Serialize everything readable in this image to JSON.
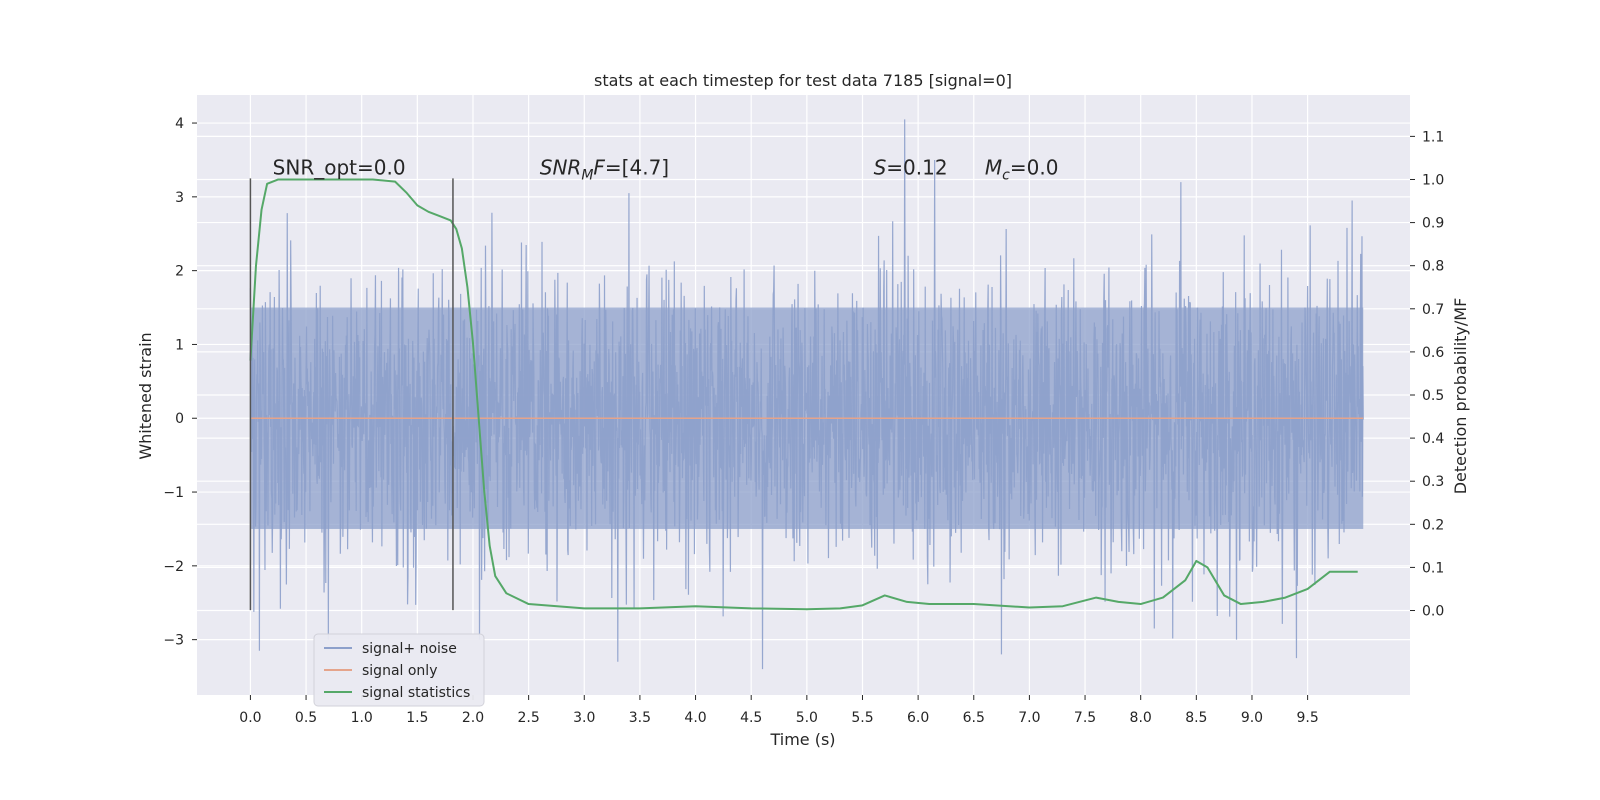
{
  "chart_data": {
    "type": "line",
    "title": "stats at each timestep for test data 7185 [signal=0]",
    "xlabel": "Time (s)",
    "ylabel_left": "Whitened strain",
    "ylabel_right": "Detection probability/MF",
    "xlim": [
      -0.48,
      10.42
    ],
    "ylim_left": [
      -3.75,
      4.38
    ],
    "ylim_right": [
      -0.196,
      1.196
    ],
    "x_ticks": [
      0.0,
      0.5,
      1.0,
      1.5,
      2.0,
      2.5,
      3.0,
      3.5,
      4.0,
      4.5,
      5.0,
      5.5,
      6.0,
      6.5,
      7.0,
      7.5,
      8.0,
      8.5,
      9.0,
      9.5
    ],
    "x_tick_labels": [
      "0.0",
      "0.5",
      "1.0",
      "1.5",
      "2.0",
      "2.5",
      "3.0",
      "3.5",
      "4.0",
      "4.5",
      "5.0",
      "5.5",
      "6.0",
      "6.5",
      "7.0",
      "7.5",
      "8.0",
      "8.5",
      "9.0",
      "9.5"
    ],
    "y_left_ticks": [
      -3,
      -2,
      -1,
      0,
      1,
      2,
      3,
      4
    ],
    "y_left_tick_labels": [
      "−3",
      "−2",
      "−1",
      "0",
      "1",
      "2",
      "3",
      "4"
    ],
    "y_right_ticks": [
      0.0,
      0.1,
      0.2,
      0.3,
      0.4,
      0.5,
      0.6,
      0.7,
      0.8,
      0.9,
      1.0,
      1.1
    ],
    "y_right_tick_labels": [
      "0.0",
      "0.1",
      "0.2",
      "0.3",
      "0.4",
      "0.5",
      "0.6",
      "0.7",
      "0.8",
      "0.9",
      "1.0",
      "1.1"
    ],
    "grid": true,
    "legend": {
      "placement": "lower-left",
      "entries": [
        "signal+ noise",
        "signal only",
        "signal statistics"
      ]
    },
    "series": [
      {
        "name": "signal+ noise",
        "axis": "left",
        "color": "#8da0cb",
        "x_range": [
          0.0,
          10.0
        ],
        "peak_values": [
          {
            "x": 5.88,
            "y": 4.05
          },
          {
            "x": 6.15,
            "y": 3.5
          },
          {
            "x": 3.4,
            "y": 3.05
          },
          {
            "x": 0.33,
            "y": 2.78
          },
          {
            "x": 8.36,
            "y": 3.2
          },
          {
            "x": 9.9,
            "y": 2.95
          },
          {
            "x": 4.6,
            "y": -3.4
          },
          {
            "x": 3.3,
            "y": -3.3
          },
          {
            "x": 0.08,
            "y": -3.15
          },
          {
            "x": 9.4,
            "y": -3.25
          },
          {
            "x": 6.75,
            "y": -3.2
          }
        ],
        "band_upper": 1.5,
        "band_lower": -1.5
      },
      {
        "name": "signal only",
        "axis": "left",
        "color": "#e5a48b",
        "x": [
          0.0,
          10.0
        ],
        "y": [
          0.0,
          0.0
        ]
      },
      {
        "name": "signal statistics",
        "axis": "right",
        "color": "#55a868",
        "x": [
          0.0,
          0.05,
          0.1,
          0.15,
          0.25,
          0.5,
          0.8,
          1.1,
          1.3,
          1.4,
          1.5,
          1.6,
          1.7,
          1.8,
          1.85,
          1.9,
          1.95,
          2.0,
          2.05,
          2.1,
          2.15,
          2.2,
          2.3,
          2.5,
          3.0,
          3.5,
          4.0,
          4.5,
          5.0,
          5.3,
          5.5,
          5.7,
          5.9,
          6.1,
          6.5,
          7.0,
          7.3,
          7.6,
          7.8,
          8.0,
          8.2,
          8.4,
          8.5,
          8.6,
          8.75,
          8.9,
          9.1,
          9.3,
          9.5,
          9.7,
          9.95
        ],
        "y": [
          0.58,
          0.8,
          0.93,
          0.99,
          1.0,
          1.0,
          1.0,
          1.0,
          0.995,
          0.97,
          0.94,
          0.925,
          0.915,
          0.905,
          0.885,
          0.84,
          0.75,
          0.62,
          0.45,
          0.28,
          0.15,
          0.08,
          0.04,
          0.015,
          0.005,
          0.005,
          0.01,
          0.005,
          0.003,
          0.005,
          0.012,
          0.035,
          0.02,
          0.015,
          0.015,
          0.007,
          0.01,
          0.03,
          0.02,
          0.015,
          0.03,
          0.07,
          0.115,
          0.1,
          0.035,
          0.015,
          0.02,
          0.03,
          0.05,
          0.09,
          0.09
        ]
      }
    ],
    "vlines": [
      {
        "x": 0.0,
        "y_left": [
          -2.6,
          3.25
        ],
        "color": "#555555"
      },
      {
        "x": 1.82,
        "y_left": [
          -2.6,
          3.25
        ],
        "color": "#555555"
      }
    ],
    "annotations": [
      {
        "id": "snr-opt",
        "x": 0.2,
        "y": 3.3,
        "prefix": "SNR_opt=",
        "italic": "",
        "sub": "",
        "value": "0.0"
      },
      {
        "id": "snr-mf",
        "x": 2.6,
        "y": 3.3,
        "prefix": "",
        "italic": "SNR",
        "sub": "M",
        "italic2": "F",
        "value": "=[4.7]"
      },
      {
        "id": "stat-s",
        "x": 5.6,
        "y": 3.3,
        "prefix": "",
        "italic": "S",
        "sub": "",
        "value": "=0.12"
      },
      {
        "id": "stat-mc",
        "x": 6.6,
        "y": 3.3,
        "prefix": "",
        "italic": "M",
        "sub": "c",
        "value": "=0.0"
      }
    ]
  }
}
